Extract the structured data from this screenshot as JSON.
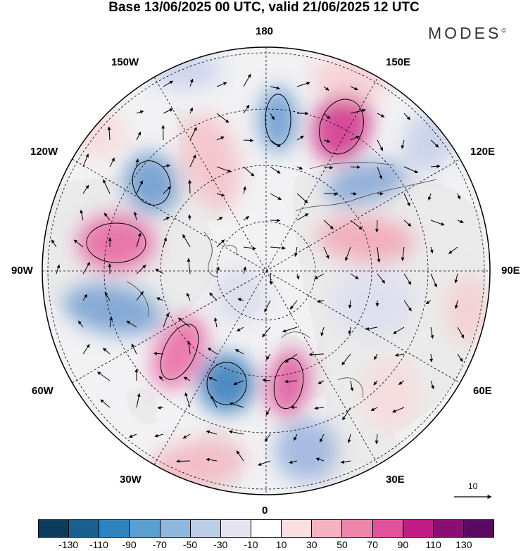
{
  "title": "Base 13/06/2025 00 UTC, valid 21/06/2025 12 UTC",
  "logo": "MODES",
  "logo_mark": "©",
  "lon_labels": {
    "top": "180",
    "bottom": "0",
    "left": "90W",
    "right": "90E",
    "upper_left_1": "150W",
    "upper_left_2": "120W",
    "upper_right_1": "150E",
    "upper_right_2": "120E",
    "lower_left_1": "60W",
    "lower_left_2": "30W",
    "lower_right_1": "60E",
    "lower_right_2": "30E"
  },
  "vector_scale_label": "10",
  "colorbar": {
    "colors": [
      "#0d3b5e",
      "#1a5f8f",
      "#2f84bf",
      "#5b9ed0",
      "#8fb7de",
      "#bccde8",
      "#e4e4f2",
      "#ffffff",
      "#fbdfe0",
      "#f4b3be",
      "#ee86ab",
      "#e0529b",
      "#c01c84",
      "#8c0d74",
      "#5a0a60"
    ],
    "labels": [
      "-130",
      "-110",
      "-90",
      "-70",
      "-50",
      "-30",
      "-10",
      "10",
      "30",
      "50",
      "70",
      "90",
      "110",
      "130"
    ]
  },
  "colors": {
    "land_fill": "#ebebeb",
    "grid": "#000000"
  }
}
